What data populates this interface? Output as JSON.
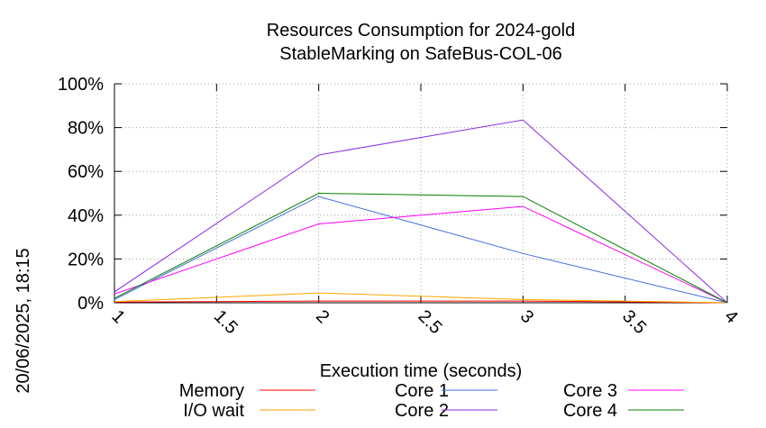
{
  "chart_data": {
    "type": "line",
    "title": "Resources Consumption for 2024-gold",
    "subtitle": "StableMarking on SafeBus-COL-06",
    "xlabel": "Execution time (seconds)",
    "ylabel": "",
    "side_label": "20/06/2025, 18:15",
    "xlim": [
      1,
      4
    ],
    "ylim": [
      0,
      100
    ],
    "x_ticks": [
      1,
      1.5,
      2,
      2.5,
      3,
      3.5,
      4
    ],
    "x_tick_labels": [
      "1",
      "1.5",
      "2",
      "2.5",
      "3",
      "3.5",
      "4"
    ],
    "y_ticks": [
      0,
      20,
      40,
      60,
      80,
      100
    ],
    "y_tick_labels": [
      "0%",
      "20%",
      "40%",
      "60%",
      "80%",
      "100%"
    ],
    "grid": true,
    "legend_position": "bottom",
    "series": [
      {
        "name": "Memory",
        "color": "#ff0000",
        "x": [
          1,
          2,
          3,
          4
        ],
        "y": [
          0.3,
          0.8,
          0.8,
          0
        ]
      },
      {
        "name": "I/O wait",
        "color": "#ffa500",
        "x": [
          1,
          2,
          3,
          4
        ],
        "y": [
          0.5,
          4.5,
          1.5,
          0
        ]
      },
      {
        "name": "Core 1",
        "color": "#4169e1",
        "x": [
          1,
          2,
          3,
          4
        ],
        "y": [
          1.5,
          48.5,
          22.5,
          0
        ]
      },
      {
        "name": "Core 2",
        "color": "#8a2be2",
        "x": [
          1,
          2,
          3,
          4
        ],
        "y": [
          5,
          67.5,
          83.5,
          0
        ]
      },
      {
        "name": "Core 3",
        "color": "#ff00ff",
        "x": [
          1,
          2,
          3,
          4
        ],
        "y": [
          4,
          36,
          44,
          0
        ]
      },
      {
        "name": "Core 4",
        "color": "#008000",
        "x": [
          1,
          2,
          3,
          4
        ],
        "y": [
          2,
          50,
          48.5,
          0
        ]
      }
    ]
  }
}
